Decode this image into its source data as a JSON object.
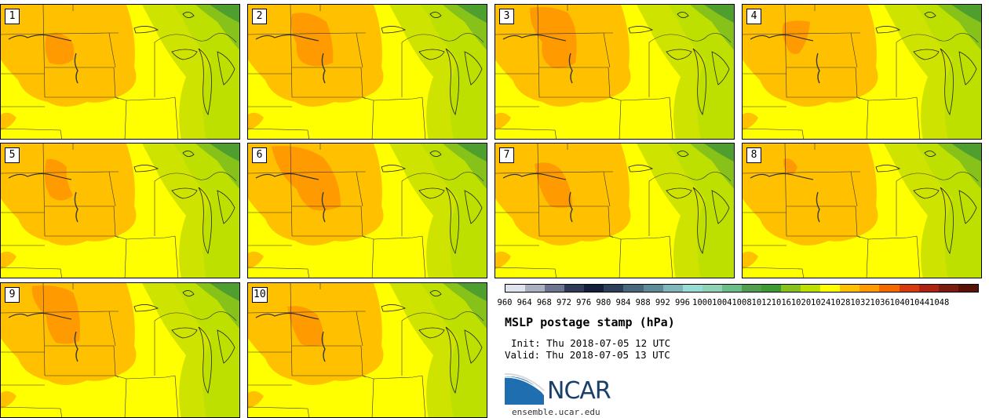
{
  "panels": [
    {
      "label": "1"
    },
    {
      "label": "2"
    },
    {
      "label": "3"
    },
    {
      "label": "4"
    },
    {
      "label": "5"
    },
    {
      "label": "6"
    },
    {
      "label": "7"
    },
    {
      "label": "8"
    },
    {
      "label": "9"
    },
    {
      "label": "10"
    }
  ],
  "colorbar": {
    "ticks": [
      "960",
      "964",
      "968",
      "972",
      "976",
      "980",
      "984",
      "988",
      "992",
      "996",
      "1000",
      "1004",
      "1008",
      "1012",
      "1016",
      "1020",
      "1024",
      "1028",
      "1032",
      "1036",
      "1040",
      "1044",
      "1048"
    ],
    "colors": [
      "#dfe3ec",
      "#aab0c0",
      "#6b7590",
      "#2e3a58",
      "#141f3c",
      "#2c3e5a",
      "#46677c",
      "#5d8c98",
      "#7fb6bb",
      "#94dcd4",
      "#8fd3b6",
      "#6bbd8a",
      "#4f9f4f",
      "#3e9a32",
      "#86c21a",
      "#bde000",
      "#ffff00",
      "#ffc000",
      "#ff9a00",
      "#f56a00",
      "#d83a10",
      "#ae2212",
      "#7a1c10",
      "#5a1208"
    ]
  },
  "info": {
    "title": "MSLP postage stamp (hPa)",
    "init": "Init: Thu 2018-07-05 12 UTC",
    "valid": "Valid: Thu 2018-07-05 13 UTC",
    "logo_text": "NCAR",
    "site": "ensemble.ucar.edu"
  }
}
